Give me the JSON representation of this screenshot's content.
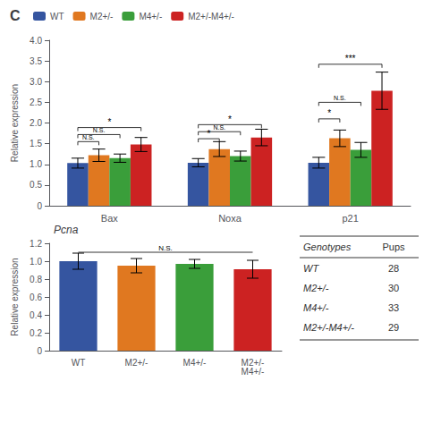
{
  "chart_data": [
    {
      "type": "bar",
      "title": "C",
      "categories": [
        "Bax",
        "Noxa",
        "p21"
      ],
      "series": [
        {
          "name": "WT",
          "color": "#3555a0",
          "values": [
            1.03,
            1.04,
            1.04
          ],
          "errors": [
            0.12,
            0.1,
            0.13
          ]
        },
        {
          "name": "M2+/-",
          "color": "#e07820",
          "values": [
            1.22,
            1.37,
            1.63
          ],
          "errors": [
            0.15,
            0.18,
            0.2
          ]
        },
        {
          "name": "M4+/-",
          "color": "#3a9e3a",
          "values": [
            1.15,
            1.2,
            1.35
          ],
          "errors": [
            0.1,
            0.12,
            0.18
          ]
        },
        {
          "name": "M2+/-M4+/-",
          "color": "#cc2222",
          "values": [
            1.48,
            1.65,
            2.78
          ],
          "errors": [
            0.17,
            0.2,
            0.45
          ]
        }
      ],
      "ylabel": "Relative expression",
      "ylim": [
        0,
        4
      ],
      "yticks": [
        0,
        0.5,
        {
          "value": 1,
          "label": "1.0"
        },
        1.5,
        {
          "value": 2,
          "label": "2.0"
        },
        2.5,
        {
          "value": 3,
          "label": "3.0"
        },
        3.5,
        {
          "value": 4,
          "label": "4.0"
        }
      ],
      "grid": false,
      "legend": "upper left",
      "annotations": [
        {
          "category": "Bax",
          "from": "WT",
          "to": "M2+/-",
          "y": 1.55,
          "text": "N.S."
        },
        {
          "category": "Bax",
          "from": "WT",
          "to": "M4+/-",
          "y": 1.72,
          "text": "N.S."
        },
        {
          "category": "Bax",
          "from": "WT",
          "to": "M2+/-M4+/-",
          "y": 1.89,
          "text": "*"
        },
        {
          "category": "Noxa",
          "from": "WT",
          "to": "M2+/-",
          "y": 1.62,
          "text": "*"
        },
        {
          "category": "Noxa",
          "from": "WT",
          "to": "M4+/-",
          "y": 1.79,
          "text": "N.S."
        },
        {
          "category": "Noxa",
          "from": "WT",
          "to": "M2+/-M4+/-",
          "y": 1.96,
          "text": "*"
        },
        {
          "category": "p21",
          "from": "WT",
          "to": "M2+/-",
          "y": 2.1,
          "text": "*"
        },
        {
          "category": "p21",
          "from": "WT",
          "to": "M4+/-",
          "y": 2.5,
          "text": "N.S."
        },
        {
          "category": "p21",
          "from": "WT",
          "to": "M2+/-M4+/-",
          "y": 3.42,
          "text": "***"
        }
      ]
    },
    {
      "type": "bar",
      "title": "Pcna",
      "categories": [
        "WT",
        "M2+/-",
        "M4+/-",
        "M2+/-\nM4+/-"
      ],
      "values": [
        1.0,
        0.95,
        0.97,
        0.91
      ],
      "errors": [
        0.09,
        0.08,
        0.05,
        0.1
      ],
      "colors": [
        "#3555a0",
        "#e07820",
        "#3a9e3a",
        "#cc2222"
      ],
      "ylabel": "Relative expression",
      "ylim": [
        0,
        1.2
      ],
      "yticks": [
        0,
        0.2,
        0.4,
        0.6,
        0.8,
        {
          "value": 1,
          "label": "1.0"
        },
        1.2
      ],
      "grid": false,
      "annotations": [
        {
          "from": "WT",
          "to": "M2+/-\nM4+/-",
          "y": 1.1,
          "text": "N.S."
        }
      ],
      "table": {
        "header": "Genotypes",
        "row_label": "Pups",
        "genotypes": [
          "WT",
          "M2+/-",
          "M4+/-",
          "M2+/-M4+/-"
        ],
        "pups": [
          28,
          30,
          33,
          29
        ]
      }
    }
  ]
}
